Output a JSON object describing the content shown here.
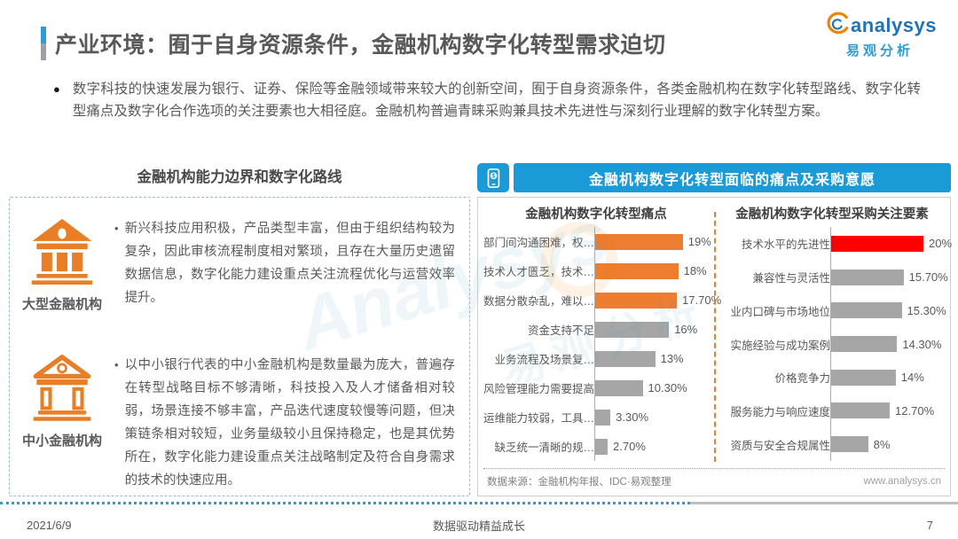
{
  "page": {
    "title": "产业环境：囿于自身资源条件，金融机构数字化转型需求迫切",
    "intro": "数字科技的快速发展为银行、证券、保险等金融领域带来较大的创新空间，囿于自身资源条件，各类金融机构在数字化转型路线、数字化转型痛点及数字化合作选项的关注要素也大相径庭。金融机构普遍青睐采购兼具技术先进性与深刻行业理解的数字化转型方案。",
    "footer": {
      "date": "2021/6/9",
      "slogan": "数据驱动精益成长",
      "page_number": "7"
    }
  },
  "logo": {
    "brand": "analysys",
    "cn": "易观分析"
  },
  "left_panel": {
    "heading": "金融机构能力边界和数字化路线",
    "blocks": [
      {
        "icon": "bank-large-icon",
        "label": "大型金融机构",
        "text": "新兴科技应用积极，产品类型丰富，但由于组织结构较为复杂，因此审核流程制度相对繁琐，且存在大量历史遗留数据信息，数字化能力建设重点关注流程优化与运营效率提升。"
      },
      {
        "icon": "bank-small-icon",
        "label": "中小金融机构",
        "text": "以中小银行代表的中小金融机构是数量最为庞大，普遍存在转型战略目标不够清晰，科技投入及人才储备相对较弱，场景连接不够丰富，产品迭代速度较慢等问题，但决策链条相对较短，业务量级较小且保持稳定，也是其优势所在，数字化能力建设重点关注战略制定及符合自身需求的技术的快速应用。"
      }
    ]
  },
  "right_panel": {
    "header": "金融机构数字化转型面临的痛点及采购意愿",
    "header_icon": "mobile-payment-icon",
    "source_note": "数据来源：金融机构年报、IDC·易观整理",
    "website": "www.analysys.cn"
  },
  "chart_data": [
    {
      "type": "bar",
      "orientation": "horizontal",
      "title": "金融机构数字化转型痛点",
      "categories": [
        "部门间沟通困难，权…",
        "技术人才匮乏，技术…",
        "数据分散杂乱，难以…",
        "资金支持不足",
        "业务流程及场景复…",
        "风险管理能力需要提高",
        "运维能力较弱，工具…",
        "缺乏统一清晰的规…"
      ],
      "values": [
        19,
        18,
        17.7,
        16,
        13,
        10.3,
        3.3,
        2.7
      ],
      "value_labels": [
        "19%",
        "18%",
        "17.70%",
        "16%",
        "13%",
        "10.30%",
        "3.30%",
        "2.70%"
      ],
      "bar_colors": [
        "#ed7d31",
        "#ed7d31",
        "#ed7d31",
        "#a6a6a6",
        "#a6a6a6",
        "#a6a6a6",
        "#a6a6a6",
        "#a6a6a6"
      ],
      "xlim": [
        0,
        20
      ],
      "grid": false,
      "legend": false
    },
    {
      "type": "bar",
      "orientation": "horizontal",
      "title": "金融机构数字化转型采购关注要素",
      "categories": [
        "技术水平的先进性",
        "兼容性与灵活性",
        "业内口碑与市场地位",
        "实施经验与成功案例",
        "价格竞争力",
        "服务能力与响应速度",
        "资质与安全合规属性"
      ],
      "values": [
        20,
        15.7,
        15.3,
        14.3,
        14,
        12.7,
        8
      ],
      "value_labels": [
        "20%",
        "15.70%",
        "15.30%",
        "14.30%",
        "14%",
        "12.70%",
        "8%"
      ],
      "bar_colors": [
        "#ff0000",
        "#a6a6a6",
        "#a6a6a6",
        "#a6a6a6",
        "#a6a6a6",
        "#a6a6a6",
        "#a6a6a6"
      ],
      "xlim": [
        0,
        20
      ],
      "grid": false,
      "legend": false
    }
  ],
  "colors": {
    "accent_blue": "#1a9ad7",
    "orange": "#ed7d31",
    "red": "#ff0000",
    "gray_bar": "#a6a6a6",
    "text_gray": "#595959"
  }
}
